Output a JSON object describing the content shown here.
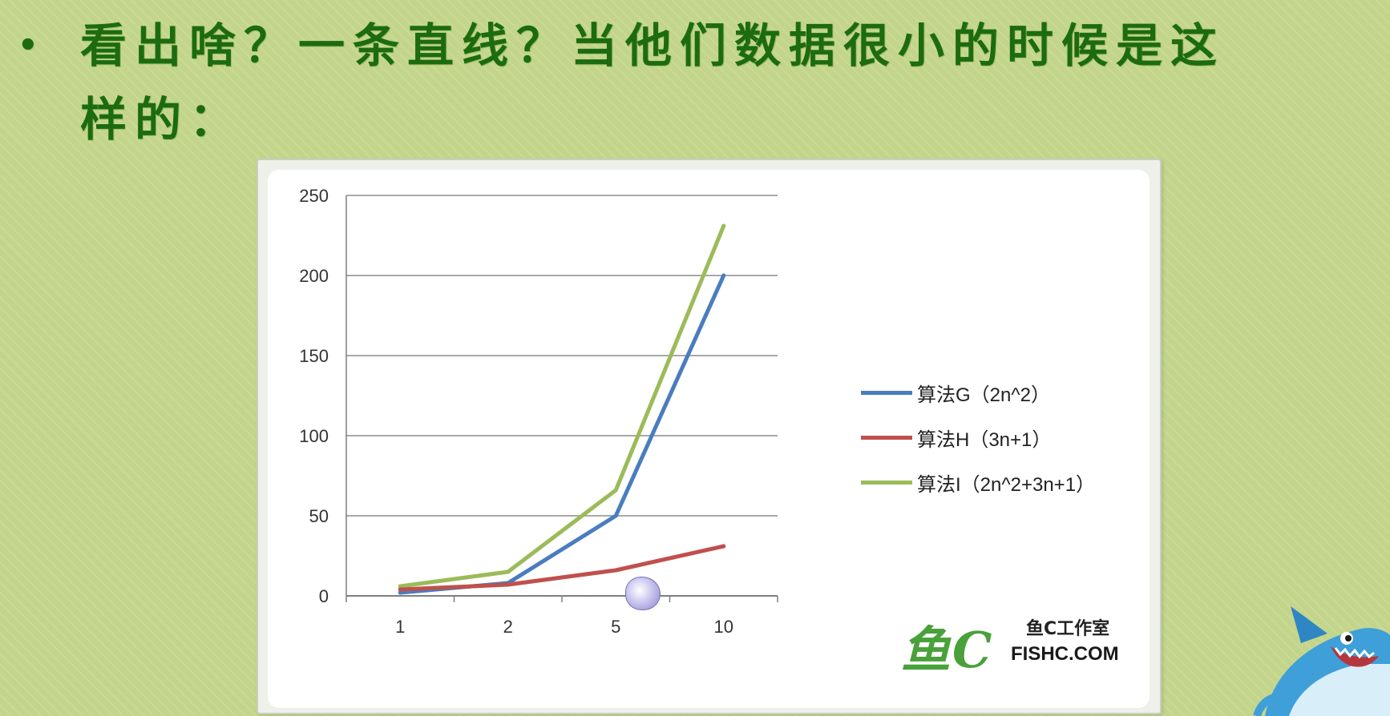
{
  "slide": {
    "bullet": "•",
    "text_line1": "看出啥？一条直线？当他们数据很小的时候是这",
    "text_line2": "样的："
  },
  "chart_data": {
    "type": "line",
    "title": "",
    "xlabel": "",
    "ylabel": "",
    "categories": [
      "1",
      "2",
      "5",
      "10"
    ],
    "ylim": [
      0,
      250
    ],
    "yticks": [
      0,
      50,
      100,
      150,
      200,
      250
    ],
    "grid": true,
    "legend_position": "right",
    "series": [
      {
        "name": "算法G（2n^2）",
        "color": "#4a7dbf",
        "values": [
          2,
          8,
          50,
          200
        ]
      },
      {
        "name": "算法H（3n+1）",
        "color": "#c0504d",
        "values": [
          4,
          7,
          16,
          31
        ]
      },
      {
        "name": "算法I（2n^2+3n+1）",
        "color": "#9bbb59",
        "values": [
          6,
          15,
          66,
          231
        ]
      }
    ]
  },
  "watermark": {
    "script_text": "鱼C",
    "studio_text": "鱼C工作室",
    "url_text": "FISHC.COM"
  }
}
